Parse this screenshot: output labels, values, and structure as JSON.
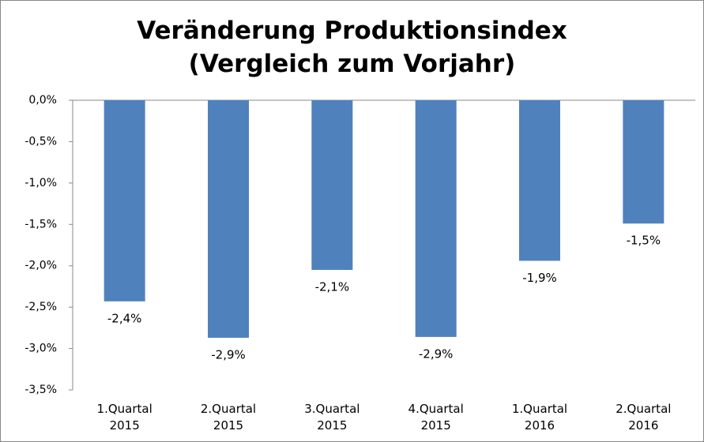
{
  "chart_data": {
    "type": "bar",
    "title": "Veränderung Produktionsindex\n(Vergleich zum Vorjahr)",
    "categories": [
      "1.Quartal\n2015",
      "2.Quartal\n2015",
      "3.Quartal\n2015",
      "4.Quartal\n2015",
      "1.Quartal\n2016",
      "2.Quartal\n2016"
    ],
    "values": [
      -2.43,
      -2.87,
      -2.05,
      -2.86,
      -1.94,
      -1.49
    ],
    "value_labels": [
      "-2,4%",
      "-2,9%",
      "-2,1%",
      "-2,9%",
      "-1,9%",
      "-1,5%"
    ],
    "color": "#4f81bd",
    "ylim": [
      -3.5,
      0
    ],
    "yticks": [
      {
        "value": 0,
        "label": "0,0%"
      },
      {
        "value": -0.5,
        "label": "-0,5%"
      },
      {
        "value": -1,
        "label": "-1,0%"
      },
      {
        "value": -1.5,
        "label": "-1,5%"
      },
      {
        "value": -2,
        "label": "-2,0%"
      },
      {
        "value": -2.5,
        "label": "-2,5%"
      },
      {
        "value": -3,
        "label": "-3,0%"
      },
      {
        "value": -3.5,
        "label": "-3,5%"
      }
    ],
    "grid": false
  }
}
